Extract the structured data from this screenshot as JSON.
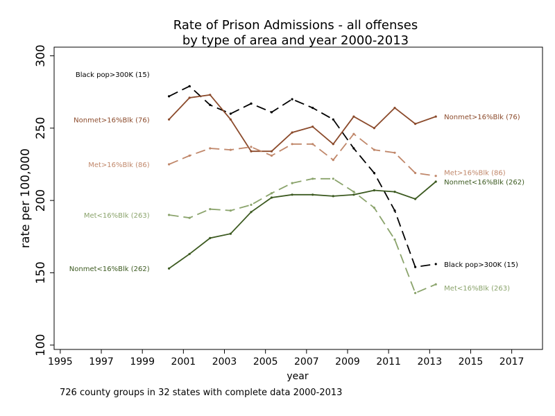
{
  "chart_data": {
    "type": "line",
    "title": "Rate of  Prison Admissions - all offenses",
    "subtitle": "by type of area and year 2000-2013",
    "xlabel": "year",
    "ylabel": "rate per 100,000",
    "xlim": [
      1994.7,
      2018.5
    ],
    "ylim": [
      97,
      306
    ],
    "x_ticks": [
      "1995",
      "1997",
      "1999",
      "2001",
      "2003",
      "2005",
      "2007",
      "2009",
      "2011",
      "2013",
      "2015",
      "2017"
    ],
    "y_ticks": [
      "100",
      "150",
      "200",
      "250",
      "300"
    ],
    "grid": false,
    "legend": "none",
    "note": "726 county groups in 32 states  with complete data 2000-2013",
    "x": [
      2000.3,
      2001.3,
      2002.3,
      2003.3,
      2004.3,
      2005.3,
      2006.3,
      2007.3,
      2008.3,
      2009.3,
      2010.3,
      2011.3,
      2012.3,
      2013.3
    ],
    "series": [
      {
        "name": "Black pop>300K (15)",
        "color": "#000000",
        "dash": "long",
        "values": [
          272,
          279,
          266,
          260,
          267,
          261,
          270,
          264,
          256,
          236,
          219,
          193,
          154,
          156
        ],
        "left_label": "Black pop>300K (15)",
        "right_label": "Black pop>300K (15)"
      },
      {
        "name": "Nonmet>16%Blk (76)",
        "color": "#8b4a2b",
        "dash": "solid",
        "values": [
          256,
          271,
          273,
          256,
          234,
          234,
          247,
          251,
          239,
          258,
          250,
          264,
          253,
          258
        ],
        "left_label": "Nonmet>16%Blk (76)",
        "right_label": "Nonmet>16%Blk (76)"
      },
      {
        "name": "Met>16%Blk (86)",
        "color": "#c0876a",
        "dash": "long",
        "values": [
          225,
          231,
          236,
          235,
          237,
          231,
          239,
          239,
          228,
          246,
          235,
          233,
          219,
          217
        ],
        "left_label": "Met>16%Blk (86)",
        "right_label": "Met>16%Blk (86)"
      },
      {
        "name": "Met<16%Blk (263)",
        "color": "#8aa36b",
        "dash": "long",
        "values": [
          190,
          188,
          194,
          193,
          197,
          205,
          212,
          215,
          215,
          206,
          195,
          173,
          136,
          142
        ],
        "left_label": "Met<16%Blk (263)",
        "right_label": "Met<16%Blk (263)"
      },
      {
        "name": "Nonmet<16%Blk (262)",
        "color": "#3c5a20",
        "dash": "solid",
        "values": [
          153,
          163,
          174,
          177,
          192,
          202,
          204,
          204,
          203,
          204,
          207,
          206,
          201,
          213
        ],
        "left_label": "Nonmet<16%Blk (262)",
        "right_label": "Nonmet<16%Blk (262)"
      }
    ]
  }
}
